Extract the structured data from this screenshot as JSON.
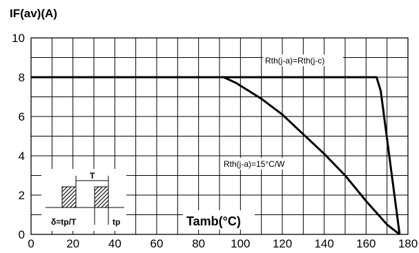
{
  "chart_data": {
    "type": "line",
    "ylabel": "IF(av)(A)",
    "xlabel": "Tamb(°C)",
    "xlim": [
      0,
      180
    ],
    "ylim": [
      0,
      10
    ],
    "x_ticks": [
      0,
      20,
      40,
      60,
      80,
      100,
      120,
      140,
      160,
      180
    ],
    "y_ticks": [
      0,
      2,
      4,
      6,
      8,
      10
    ],
    "grid": true,
    "series": [
      {
        "name": "Rth(j-a)=Rth(j-c)",
        "x": [
          0,
          165,
          167,
          176
        ],
        "y": [
          8,
          8,
          7.3,
          0
        ]
      },
      {
        "name": "Rth(j-a)=15°C/W",
        "x": [
          92,
          98,
          110,
          120,
          130,
          140,
          150,
          160,
          170,
          176
        ],
        "y": [
          8,
          7.7,
          6.9,
          6.1,
          5.1,
          4.1,
          3.0,
          1.7,
          0.5,
          0
        ]
      }
    ],
    "annotations": [
      "Rth(j-a)=Rth(j-c)",
      "Rth(j-a)=15°C/W"
    ],
    "inset": {
      "period_label": "T",
      "duty_label": "δ=tp/T",
      "pulse_label": "tp"
    }
  }
}
